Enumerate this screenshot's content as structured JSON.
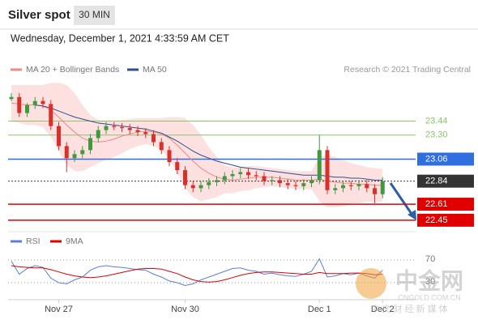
{
  "header": {
    "title": "Silver spot",
    "timeframe": "30 MIN",
    "date": "Wednesday, December 1, 2021 4:33:59 AM CET",
    "credit": "Research © 2021 Trading Central"
  },
  "watermark": {
    "name": "中金网",
    "site": "CNGOLD.COM.CN",
    "slogan": "中 文 财 经 新 媒 体"
  },
  "chart_data": [
    {
      "type": "candlestick",
      "categories": [
        null,
        null,
        null,
        null,
        null,
        null,
        "Nov 27",
        null,
        null,
        null,
        null,
        null,
        null,
        null,
        null,
        null,
        null,
        null,
        null,
        null,
        null,
        null,
        "Nov 30",
        null,
        null,
        null,
        null,
        null,
        null,
        null,
        null,
        null,
        null,
        null,
        null,
        null,
        null,
        null,
        null,
        "Dec 1",
        null,
        null,
        null,
        null,
        null,
        null,
        null,
        "Dec 2"
      ],
      "open": [
        23.66,
        23.68,
        23.52,
        23.6,
        23.64,
        23.61,
        23.39,
        23.19,
        23.07,
        23.11,
        23.15,
        23.27,
        23.35,
        23.39,
        23.38,
        23.37,
        23.35,
        23.33,
        23.31,
        23.23,
        23.15,
        23.03,
        22.95,
        22.8,
        22.77,
        22.8,
        22.83,
        22.85,
        22.89,
        22.91,
        22.93,
        22.9,
        22.89,
        22.84,
        22.85,
        22.82,
        22.8,
        22.79,
        22.82,
        22.85,
        23.15,
        22.75,
        22.77,
        22.8,
        22.79,
        22.81,
        22.77,
        22.71
      ],
      "high": [
        23.72,
        23.72,
        23.62,
        23.68,
        23.68,
        23.65,
        23.43,
        23.23,
        23.15,
        23.19,
        23.31,
        23.39,
        23.43,
        23.43,
        23.42,
        23.41,
        23.39,
        23.37,
        23.35,
        23.27,
        23.19,
        23.07,
        22.99,
        22.84,
        22.84,
        22.87,
        22.89,
        22.93,
        22.95,
        22.97,
        22.97,
        22.94,
        22.93,
        22.89,
        22.89,
        22.86,
        22.84,
        22.86,
        22.89,
        23.3,
        23.19,
        22.81,
        22.84,
        22.84,
        22.85,
        22.85,
        22.81,
        22.88
      ],
      "low": [
        23.64,
        23.48,
        23.48,
        23.56,
        23.57,
        23.35,
        23.15,
        22.93,
        23.03,
        23.07,
        23.11,
        23.23,
        23.31,
        23.35,
        23.33,
        23.31,
        23.29,
        23.27,
        23.19,
        23.11,
        22.99,
        22.91,
        22.76,
        22.73,
        22.73,
        22.76,
        22.79,
        22.81,
        22.85,
        22.87,
        22.86,
        22.85,
        22.8,
        22.8,
        22.78,
        22.76,
        22.75,
        22.75,
        22.78,
        22.81,
        22.71,
        22.71,
        22.73,
        22.75,
        22.75,
        22.73,
        22.62,
        22.67
      ],
      "close": [
        23.68,
        23.52,
        23.6,
        23.64,
        23.61,
        23.39,
        23.19,
        23.07,
        23.11,
        23.15,
        23.27,
        23.35,
        23.39,
        23.38,
        23.37,
        23.35,
        23.33,
        23.31,
        23.23,
        23.15,
        23.03,
        22.95,
        22.8,
        22.77,
        22.8,
        22.83,
        22.85,
        22.89,
        22.91,
        22.93,
        22.9,
        22.89,
        22.84,
        22.85,
        22.82,
        22.8,
        22.79,
        22.82,
        22.85,
        23.15,
        22.75,
        22.77,
        22.8,
        22.79,
        22.81,
        22.77,
        22.71,
        22.84
      ],
      "up_color": "#3f9a3f",
      "down_color": "#d9302c",
      "series": [
        {
          "name": "MA 20 + Bollinger Bands",
          "color": "#f08a80",
          "values": [
            23.62,
            23.61,
            23.6,
            23.6,
            23.59,
            23.55,
            23.48,
            23.4,
            23.33,
            23.27,
            23.24,
            23.23,
            23.24,
            23.26,
            23.29,
            23.31,
            23.33,
            23.34,
            23.33,
            23.31,
            23.27,
            23.2,
            23.12,
            23.04,
            22.97,
            22.92,
            22.88,
            22.86,
            22.85,
            22.86,
            22.87,
            22.88,
            22.88,
            22.88,
            22.87,
            22.86,
            22.85,
            22.85,
            22.85,
            22.86,
            22.84,
            22.83,
            22.82,
            22.82,
            22.81,
            22.81,
            22.8,
            22.8
          ]
        },
        {
          "name": "MA 50",
          "color": "#2f4f8f",
          "values": [
            null,
            null,
            null,
            23.6,
            23.59,
            23.57,
            23.54,
            23.51,
            23.48,
            23.46,
            23.44,
            23.42,
            23.41,
            23.4,
            23.39,
            23.38,
            23.37,
            23.36,
            23.34,
            23.32,
            23.28,
            23.24,
            23.19,
            23.14,
            23.1,
            23.07,
            23.04,
            23.02,
            23.0,
            22.98,
            22.97,
            22.96,
            22.95,
            22.94,
            22.93,
            22.92,
            22.91,
            22.9,
            22.9,
            22.9,
            22.89,
            22.88,
            22.88,
            22.87,
            22.87,
            22.86,
            22.85,
            22.85
          ]
        }
      ],
      "bands": {
        "color": "#fde0e0",
        "upper": [
          23.8,
          23.8,
          23.8,
          23.8,
          23.8,
          23.82,
          23.82,
          23.8,
          23.72,
          23.6,
          23.5,
          23.45,
          23.44,
          23.44,
          23.45,
          23.46,
          23.47,
          23.47,
          23.47,
          23.47,
          23.48,
          23.48,
          23.47,
          23.4,
          23.3,
          23.18,
          23.08,
          23.0,
          22.98,
          22.98,
          22.99,
          22.99,
          22.98,
          22.97,
          22.96,
          22.95,
          22.94,
          22.94,
          22.94,
          23.08,
          23.1,
          23.08,
          23.05,
          23.02,
          23.0,
          22.98,
          22.97,
          22.96
        ],
        "lower": [
          23.44,
          23.42,
          23.4,
          23.4,
          23.38,
          23.28,
          23.14,
          23.0,
          22.94,
          22.94,
          22.98,
          23.02,
          23.05,
          23.08,
          23.12,
          23.16,
          23.19,
          23.21,
          23.19,
          23.15,
          23.06,
          22.92,
          22.77,
          22.68,
          22.64,
          22.66,
          22.68,
          22.72,
          22.72,
          22.74,
          22.75,
          22.77,
          22.78,
          22.79,
          22.78,
          22.77,
          22.76,
          22.76,
          22.76,
          22.64,
          22.58,
          22.58,
          22.59,
          22.62,
          22.62,
          22.64,
          22.63,
          22.64
        ]
      },
      "ylim": [
        22.36,
        23.84
      ],
      "yticks": [
        23.44,
        {
          "value": 23.3,
          "label": "23.30"
        },
        23.06,
        22.84,
        22.61,
        22.45
      ],
      "ytick_colors": [
        "#8cc46a",
        "#8cc46a",
        "#2f6fe0",
        "#333333",
        "#e00000",
        "#e00000"
      ],
      "ytick_boxed": [
        false,
        false,
        true,
        true,
        true,
        true
      ],
      "ytick_dotted": [
        false,
        false,
        false,
        true,
        false,
        false
      ]
    },
    {
      "type": "line",
      "series": [
        {
          "name": "RSI",
          "color": "#5b7fd6",
          "values": [
            68,
            45,
            55,
            60,
            57,
            38,
            30,
            28,
            35,
            40,
            52,
            58,
            60,
            58,
            57,
            55,
            53,
            52,
            45,
            40,
            33,
            30,
            25,
            28,
            35,
            40,
            45,
            50,
            55,
            56,
            52,
            50,
            45,
            47,
            44,
            42,
            41,
            45,
            50,
            72,
            40,
            42,
            46,
            44,
            47,
            42,
            38,
            52
          ]
        },
        {
          "name": "9MA",
          "color": "#e00000",
          "values": [
            60,
            58,
            57,
            56,
            56,
            53,
            49,
            45,
            42,
            40,
            39,
            40,
            42,
            45,
            48,
            51,
            54,
            55,
            55,
            54,
            50,
            46,
            40,
            35,
            32,
            31,
            32,
            35,
            39,
            43,
            46,
            48,
            49,
            49,
            48,
            47,
            46,
            45,
            45,
            48,
            46,
            46,
            46,
            47,
            47,
            46,
            44,
            45
          ]
        }
      ],
      "ylim": [
        0,
        100
      ],
      "yticks": [
        70,
        30
      ]
    }
  ]
}
